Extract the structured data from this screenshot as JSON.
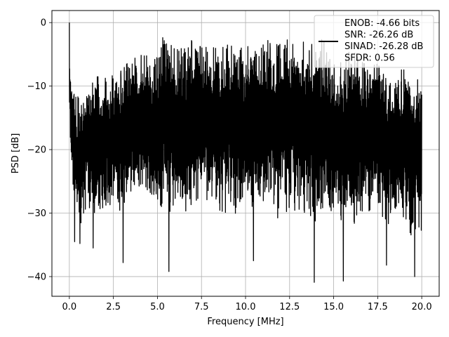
{
  "chart_data": {
    "type": "line",
    "title": "",
    "xlabel": "Frequency [MHz]",
    "ylabel": "PSD [dB]",
    "xlim": [
      -0.99,
      20.99
    ],
    "ylim": [
      -43.1,
      1.9
    ],
    "x_ticks": [
      0.0,
      2.5,
      5.0,
      7.5,
      10.0,
      12.5,
      15.0,
      17.5,
      20.0
    ],
    "x_tick_labels": [
      "0.0",
      "2.5",
      "5.0",
      "7.5",
      "10.0",
      "12.5",
      "15.0",
      "17.5",
      "20.0"
    ],
    "y_ticks": [
      0,
      -10,
      -20,
      -30,
      -40
    ],
    "y_tick_labels": [
      "0",
      "−10",
      "−20",
      "−30",
      "−40"
    ],
    "grid": true,
    "legend_placement": "upper-right",
    "line_color": "#000000",
    "series": [
      {
        "name": "ENOB: -4.66 bits\nSNR: -26.26 dB\nSINAD: -26.28 dB\nSFDR: 0.56",
        "legend_lines": [
          "ENOB: -4.66 bits",
          "SNR: -26.26 dB",
          "SINAD: -26.28 dB",
          "SFDR: 0.56"
        ],
        "color": "#000000",
        "x_start": 0.0,
        "x_end": 20.0,
        "peak": {
          "x": 0.0,
          "y": 0.0
        },
        "upper_envelope": [
          [
            0.0,
            0.0
          ],
          [
            0.05,
            -7
          ],
          [
            0.2,
            -10.5
          ],
          [
            0.4,
            -12
          ],
          [
            0.8,
            -10.5
          ],
          [
            1.2,
            -9.5
          ],
          [
            1.6,
            -8.5
          ],
          [
            2.0,
            -8.8
          ],
          [
            2.5,
            -8.3
          ],
          [
            3.0,
            -7.5
          ],
          [
            3.4,
            -6.0
          ],
          [
            3.8,
            -5.5
          ],
          [
            4.2,
            -5.0
          ],
          [
            4.6,
            -5.5
          ],
          [
            5.0,
            -5.2
          ],
          [
            5.5,
            -0.5
          ],
          [
            6.0,
            -4.5
          ],
          [
            6.5,
            -3.5
          ],
          [
            7.0,
            -2.5
          ],
          [
            7.5,
            -4.0
          ],
          [
            8.0,
            -3.8
          ],
          [
            8.5,
            -4.2
          ],
          [
            9.0,
            -3.5
          ],
          [
            9.5,
            -4.0
          ],
          [
            10.0,
            -4.0
          ],
          [
            10.5,
            -2.0
          ],
          [
            11.0,
            -3.5
          ],
          [
            11.2,
            -2.0
          ],
          [
            11.5,
            -4.0
          ],
          [
            12.0,
            -3.0
          ],
          [
            12.3,
            -1.5
          ],
          [
            12.8,
            -4.0
          ],
          [
            13.2,
            -2.5
          ],
          [
            13.8,
            -3.5
          ],
          [
            14.0,
            -3.0
          ],
          [
            14.5,
            -2.5
          ],
          [
            15.0,
            -5.5
          ],
          [
            15.5,
            -6.5
          ],
          [
            16.0,
            -4.0
          ],
          [
            16.5,
            -6.0
          ],
          [
            17.0,
            -7.0
          ],
          [
            17.5,
            -6.5
          ],
          [
            18.0,
            -9.0
          ],
          [
            18.5,
            -8.5
          ],
          [
            19.0,
            -7.0
          ],
          [
            19.5,
            -9.0
          ],
          [
            20.0,
            -9.0
          ]
        ],
        "lower_envelope": [
          [
            0.0,
            -15
          ],
          [
            0.1,
            -24
          ],
          [
            0.3,
            -30
          ],
          [
            0.5,
            -33
          ],
          [
            1.0,
            -30
          ],
          [
            1.5,
            -32
          ],
          [
            2.0,
            -29
          ],
          [
            2.5,
            -30
          ],
          [
            3.0,
            -31
          ],
          [
            3.5,
            -28
          ],
          [
            4.0,
            -27
          ],
          [
            4.5,
            -29
          ],
          [
            5.0,
            -30
          ],
          [
            5.5,
            -30
          ],
          [
            6.0,
            -30
          ],
          [
            6.5,
            -31
          ],
          [
            7.0,
            -29
          ],
          [
            7.5,
            -29
          ],
          [
            8.0,
            -30
          ],
          [
            8.5,
            -31
          ],
          [
            9.0,
            -30
          ],
          [
            9.5,
            -31
          ],
          [
            10.0,
            -32
          ],
          [
            10.5,
            -31
          ],
          [
            11.0,
            -31
          ],
          [
            11.5,
            -30
          ],
          [
            12.0,
            -32
          ],
          [
            12.5,
            -30
          ],
          [
            13.0,
            -31
          ],
          [
            13.5,
            -32
          ],
          [
            14.0,
            -33
          ],
          [
            14.5,
            -31
          ],
          [
            15.0,
            -31
          ],
          [
            15.5,
            -33
          ],
          [
            16.0,
            -32
          ],
          [
            16.5,
            -32
          ],
          [
            17.0,
            -31
          ],
          [
            17.5,
            -30
          ],
          [
            18.0,
            -32
          ],
          [
            18.5,
            -32
          ],
          [
            19.0,
            -33
          ],
          [
            19.5,
            -34
          ],
          [
            20.0,
            -33
          ]
        ],
        "deep_dips": [
          [
            0.3,
            -34.5
          ],
          [
            0.6,
            -34.8
          ],
          [
            1.35,
            -35.5
          ],
          [
            3.05,
            -37.8
          ],
          [
            5.65,
            -39.2
          ],
          [
            10.45,
            -37.5
          ],
          [
            13.9,
            -40.9
          ],
          [
            15.55,
            -40.7
          ],
          [
            18.0,
            -38.2
          ],
          [
            19.6,
            -40.0
          ]
        ]
      }
    ]
  }
}
